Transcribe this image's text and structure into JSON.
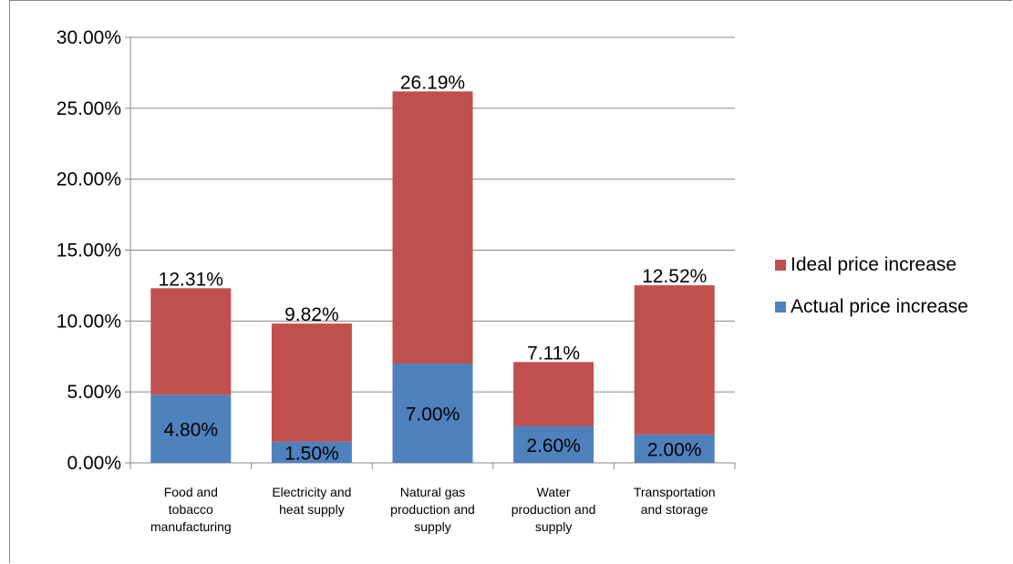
{
  "chart_data": {
    "type": "bar",
    "stacked": true,
    "categories": [
      [
        "Food and",
        "tobacco",
        "manufacturing"
      ],
      [
        "Electricity and",
        "heat supply"
      ],
      [
        "Natural gas",
        "production and",
        "supply"
      ],
      [
        "Water",
        "production and",
        "supply"
      ],
      [
        "Transportation",
        "and storage"
      ]
    ],
    "series": [
      {
        "name": "Actual price increase",
        "color": "#4F81BD",
        "values": [
          4.8,
          1.5,
          7.0,
          2.6,
          2.0
        ],
        "labels": [
          "4.80%",
          "1.50%",
          "7.00%",
          "2.60%",
          "2.00%"
        ]
      },
      {
        "name": "Ideal price increase",
        "color": "#C0504D",
        "values": [
          7.51,
          8.32,
          19.19,
          4.51,
          10.52
        ]
      }
    ],
    "totals": [
      12.31,
      9.82,
      26.19,
      7.11,
      12.52
    ],
    "total_labels": [
      "12.31%",
      "9.82%",
      "26.19%",
      "7.11%",
      "12.52%"
    ],
    "ylim": [
      0,
      30
    ],
    "yticks": [
      0,
      5,
      10,
      15,
      20,
      25,
      30
    ],
    "ytick_labels": [
      "0.00%",
      "5.00%",
      "10.00%",
      "15.00%",
      "20.00%",
      "25.00%",
      "30.00%"
    ],
    "grid": true,
    "legend": {
      "position": "right",
      "entries": [
        {
          "name": "Ideal price increase",
          "color": "#C0504D"
        },
        {
          "name": "Actual price increase",
          "color": "#4F81BD"
        }
      ]
    }
  }
}
